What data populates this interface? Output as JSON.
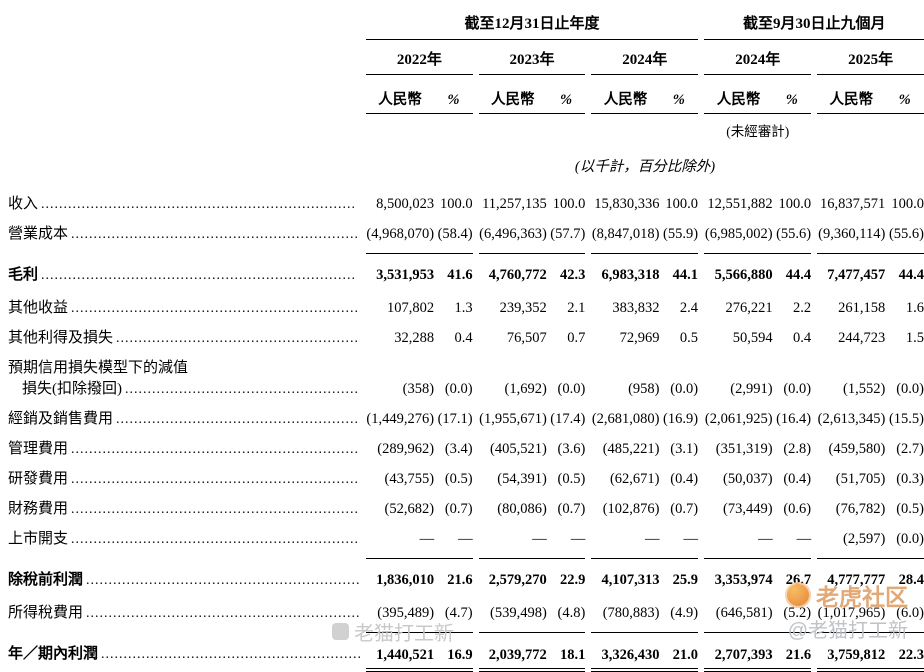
{
  "table": {
    "col_groups": [
      {
        "title": "截至12月31日止年度",
        "years": [
          "2022年",
          "2023年",
          "2024年"
        ]
      },
      {
        "title": "截至9月30日止九個月",
        "years": [
          "2024年",
          "2025年"
        ]
      }
    ],
    "subheaders": {
      "currency": "人民幣",
      "percent": "%"
    },
    "unaudited_note": "(未經審計)",
    "units_note": "(以千計，百分比除外)",
    "rows": [
      {
        "label": "收入",
        "leader": true,
        "style": "",
        "values": [
          "8,500,023",
          "100.0",
          "11,257,135",
          "100.0",
          "15,830,336",
          "100.0",
          "12,551,882",
          "100.0",
          "16,837,571",
          "100.0"
        ]
      },
      {
        "label": "營業成本",
        "leader": true,
        "style": "",
        "values": [
          "(4,968,070)",
          "(58.4)",
          "(6,496,363)",
          "(57.7)",
          "(8,847,018)",
          "(55.9)",
          "(6,985,002)",
          "(55.6)",
          "(9,360,114)",
          "(55.6)"
        ]
      },
      {
        "label": "毛利",
        "leader": true,
        "style": "total",
        "values": [
          "3,531,953",
          "41.6",
          "4,760,772",
          "42.3",
          "6,983,318",
          "44.1",
          "5,566,880",
          "44.4",
          "7,477,457",
          "44.4"
        ]
      },
      {
        "label": "其他收益",
        "leader": true,
        "style": "",
        "values": [
          "107,802",
          "1.3",
          "239,352",
          "2.1",
          "383,832",
          "2.4",
          "276,221",
          "2.2",
          "261,158",
          "1.6"
        ]
      },
      {
        "label": "其他利得及損失",
        "leader": true,
        "style": "",
        "values": [
          "32,288",
          "0.4",
          "76,507",
          "0.7",
          "72,969",
          "0.5",
          "50,594",
          "0.4",
          "244,723",
          "1.5"
        ]
      },
      {
        "label": "預期信用損失模型下的減值",
        "label2": "損失(扣除撥回)",
        "leader": true,
        "style": "",
        "values": [
          "(358)",
          "(0.0)",
          "(1,692)",
          "(0.0)",
          "(958)",
          "(0.0)",
          "(2,991)",
          "(0.0)",
          "(1,552)",
          "(0.0)"
        ]
      },
      {
        "label": "經銷及銷售費用",
        "leader": true,
        "style": "",
        "values": [
          "(1,449,276)",
          "(17.1)",
          "(1,955,671)",
          "(17.4)",
          "(2,681,080)",
          "(16.9)",
          "(2,061,925)",
          "(16.4)",
          "(2,613,345)",
          "(15.5)"
        ]
      },
      {
        "label": "管理費用",
        "leader": true,
        "style": "",
        "values": [
          "(289,962)",
          "(3.4)",
          "(405,521)",
          "(3.6)",
          "(485,221)",
          "(3.1)",
          "(351,319)",
          "(2.8)",
          "(459,580)",
          "(2.7)"
        ]
      },
      {
        "label": "研發費用",
        "leader": true,
        "style": "",
        "values": [
          "(43,755)",
          "(0.5)",
          "(54,391)",
          "(0.5)",
          "(62,671)",
          "(0.4)",
          "(50,037)",
          "(0.4)",
          "(51,705)",
          "(0.3)"
        ]
      },
      {
        "label": "財務費用",
        "leader": true,
        "style": "",
        "values": [
          "(52,682)",
          "(0.7)",
          "(80,086)",
          "(0.7)",
          "(102,876)",
          "(0.7)",
          "(73,449)",
          "(0.6)",
          "(76,782)",
          "(0.5)"
        ]
      },
      {
        "label": "上市開支",
        "leader": true,
        "style": "",
        "values": [
          "—",
          "—",
          "—",
          "—",
          "—",
          "—",
          "—",
          "—",
          "(2,597)",
          "(0.0)"
        ]
      },
      {
        "label": "除稅前利潤",
        "leader": true,
        "style": "total",
        "values": [
          "1,836,010",
          "21.6",
          "2,579,270",
          "22.9",
          "4,107,313",
          "25.9",
          "3,353,974",
          "26.7",
          "4,777,777",
          "28.4"
        ]
      },
      {
        "label": "所得稅費用",
        "leader": true,
        "style": "",
        "values": [
          "(395,489)",
          "(4.7)",
          "(539,498)",
          "(4.8)",
          "(780,883)",
          "(4.9)",
          "(646,581)",
          "(5.2)",
          "(1,017,965)",
          "(6.0)"
        ]
      },
      {
        "label": "年／期內利潤",
        "leader": true,
        "style": "total final",
        "values": [
          "1,440,521",
          "16.9",
          "2,039,772",
          "18.1",
          "3,326,430",
          "21.0",
          "2,707,393",
          "21.6",
          "3,759,812",
          "22.3"
        ]
      }
    ]
  },
  "watermarks": {
    "community": "老虎社区",
    "handle_right": "@老猫打工新",
    "handle_left": "老猫打工新"
  }
}
